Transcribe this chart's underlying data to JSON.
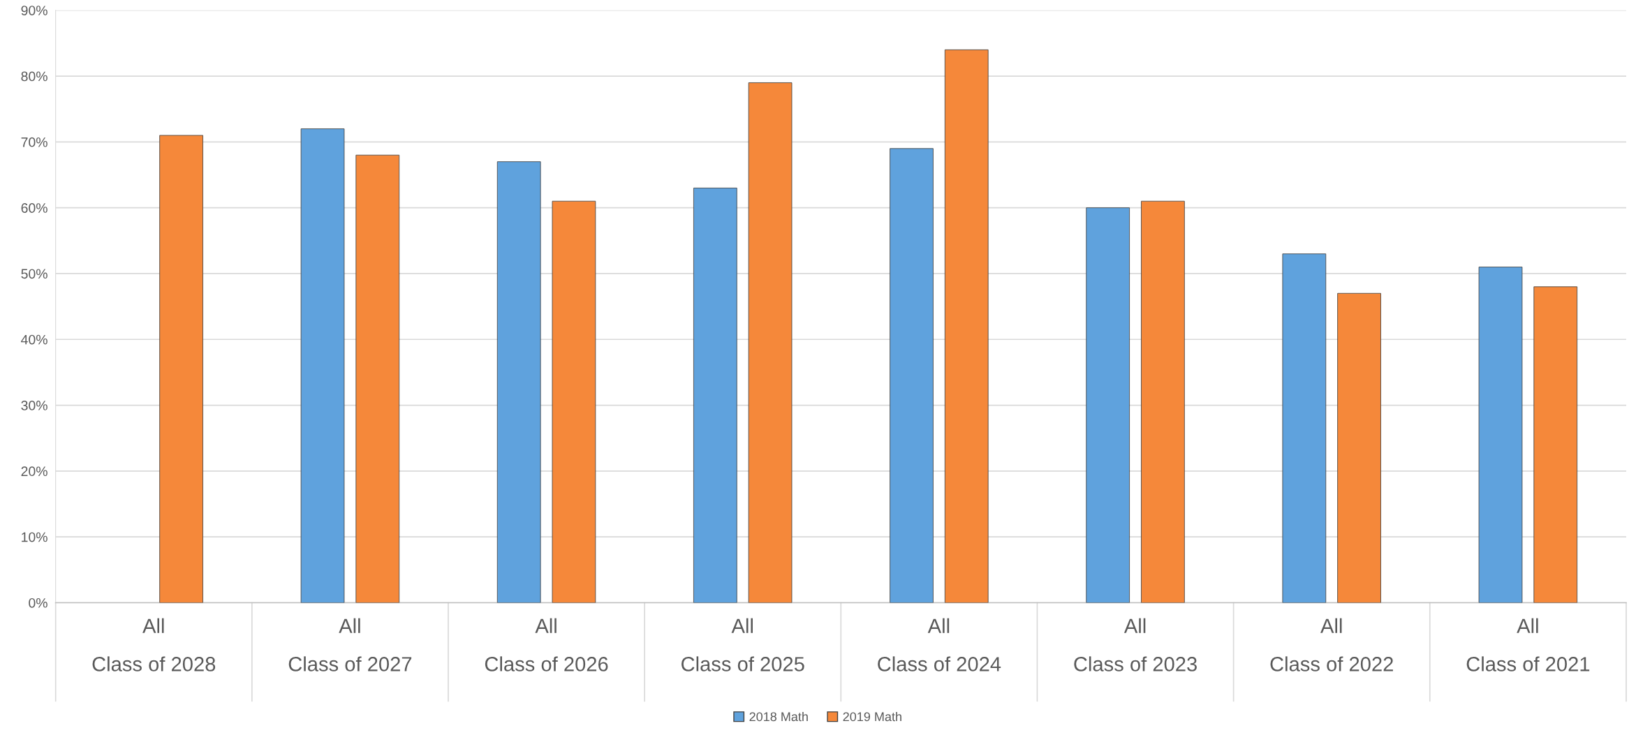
{
  "chart_data": {
    "type": "bar",
    "categories": [
      "All\nClass of 2028",
      "All\nClass of 2027",
      "All\nClass of 2026",
      "All\nClass of 2025",
      "All\nClass of 2024",
      "All\nClass of 2023",
      "All\nClass of 2022",
      "All\nClass of 2021"
    ],
    "series": [
      {
        "name": "2018 Math",
        "color": "#5fa2dd",
        "values": [
          null,
          72,
          67,
          63,
          69,
          60,
          53,
          51
        ]
      },
      {
        "name": "2019 Math",
        "color": "#f5883a",
        "values": [
          71,
          68,
          61,
          79,
          84,
          61,
          47,
          48
        ]
      }
    ],
    "ylim": [
      0,
      90
    ],
    "yticks": [
      {
        "value": 0,
        "label": "0%"
      },
      {
        "value": 10,
        "label": "10%"
      },
      {
        "value": 20,
        "label": "20%"
      },
      {
        "value": 30,
        "label": "30%"
      },
      {
        "value": 40,
        "label": "40%"
      },
      {
        "value": 50,
        "label": "50%"
      },
      {
        "value": 60,
        "label": "60%"
      },
      {
        "value": 70,
        "label": "70%"
      },
      {
        "value": 80,
        "label": "80%"
      },
      {
        "value": 90,
        "label": "90%"
      }
    ],
    "grid": "y",
    "legend": "bottom"
  }
}
